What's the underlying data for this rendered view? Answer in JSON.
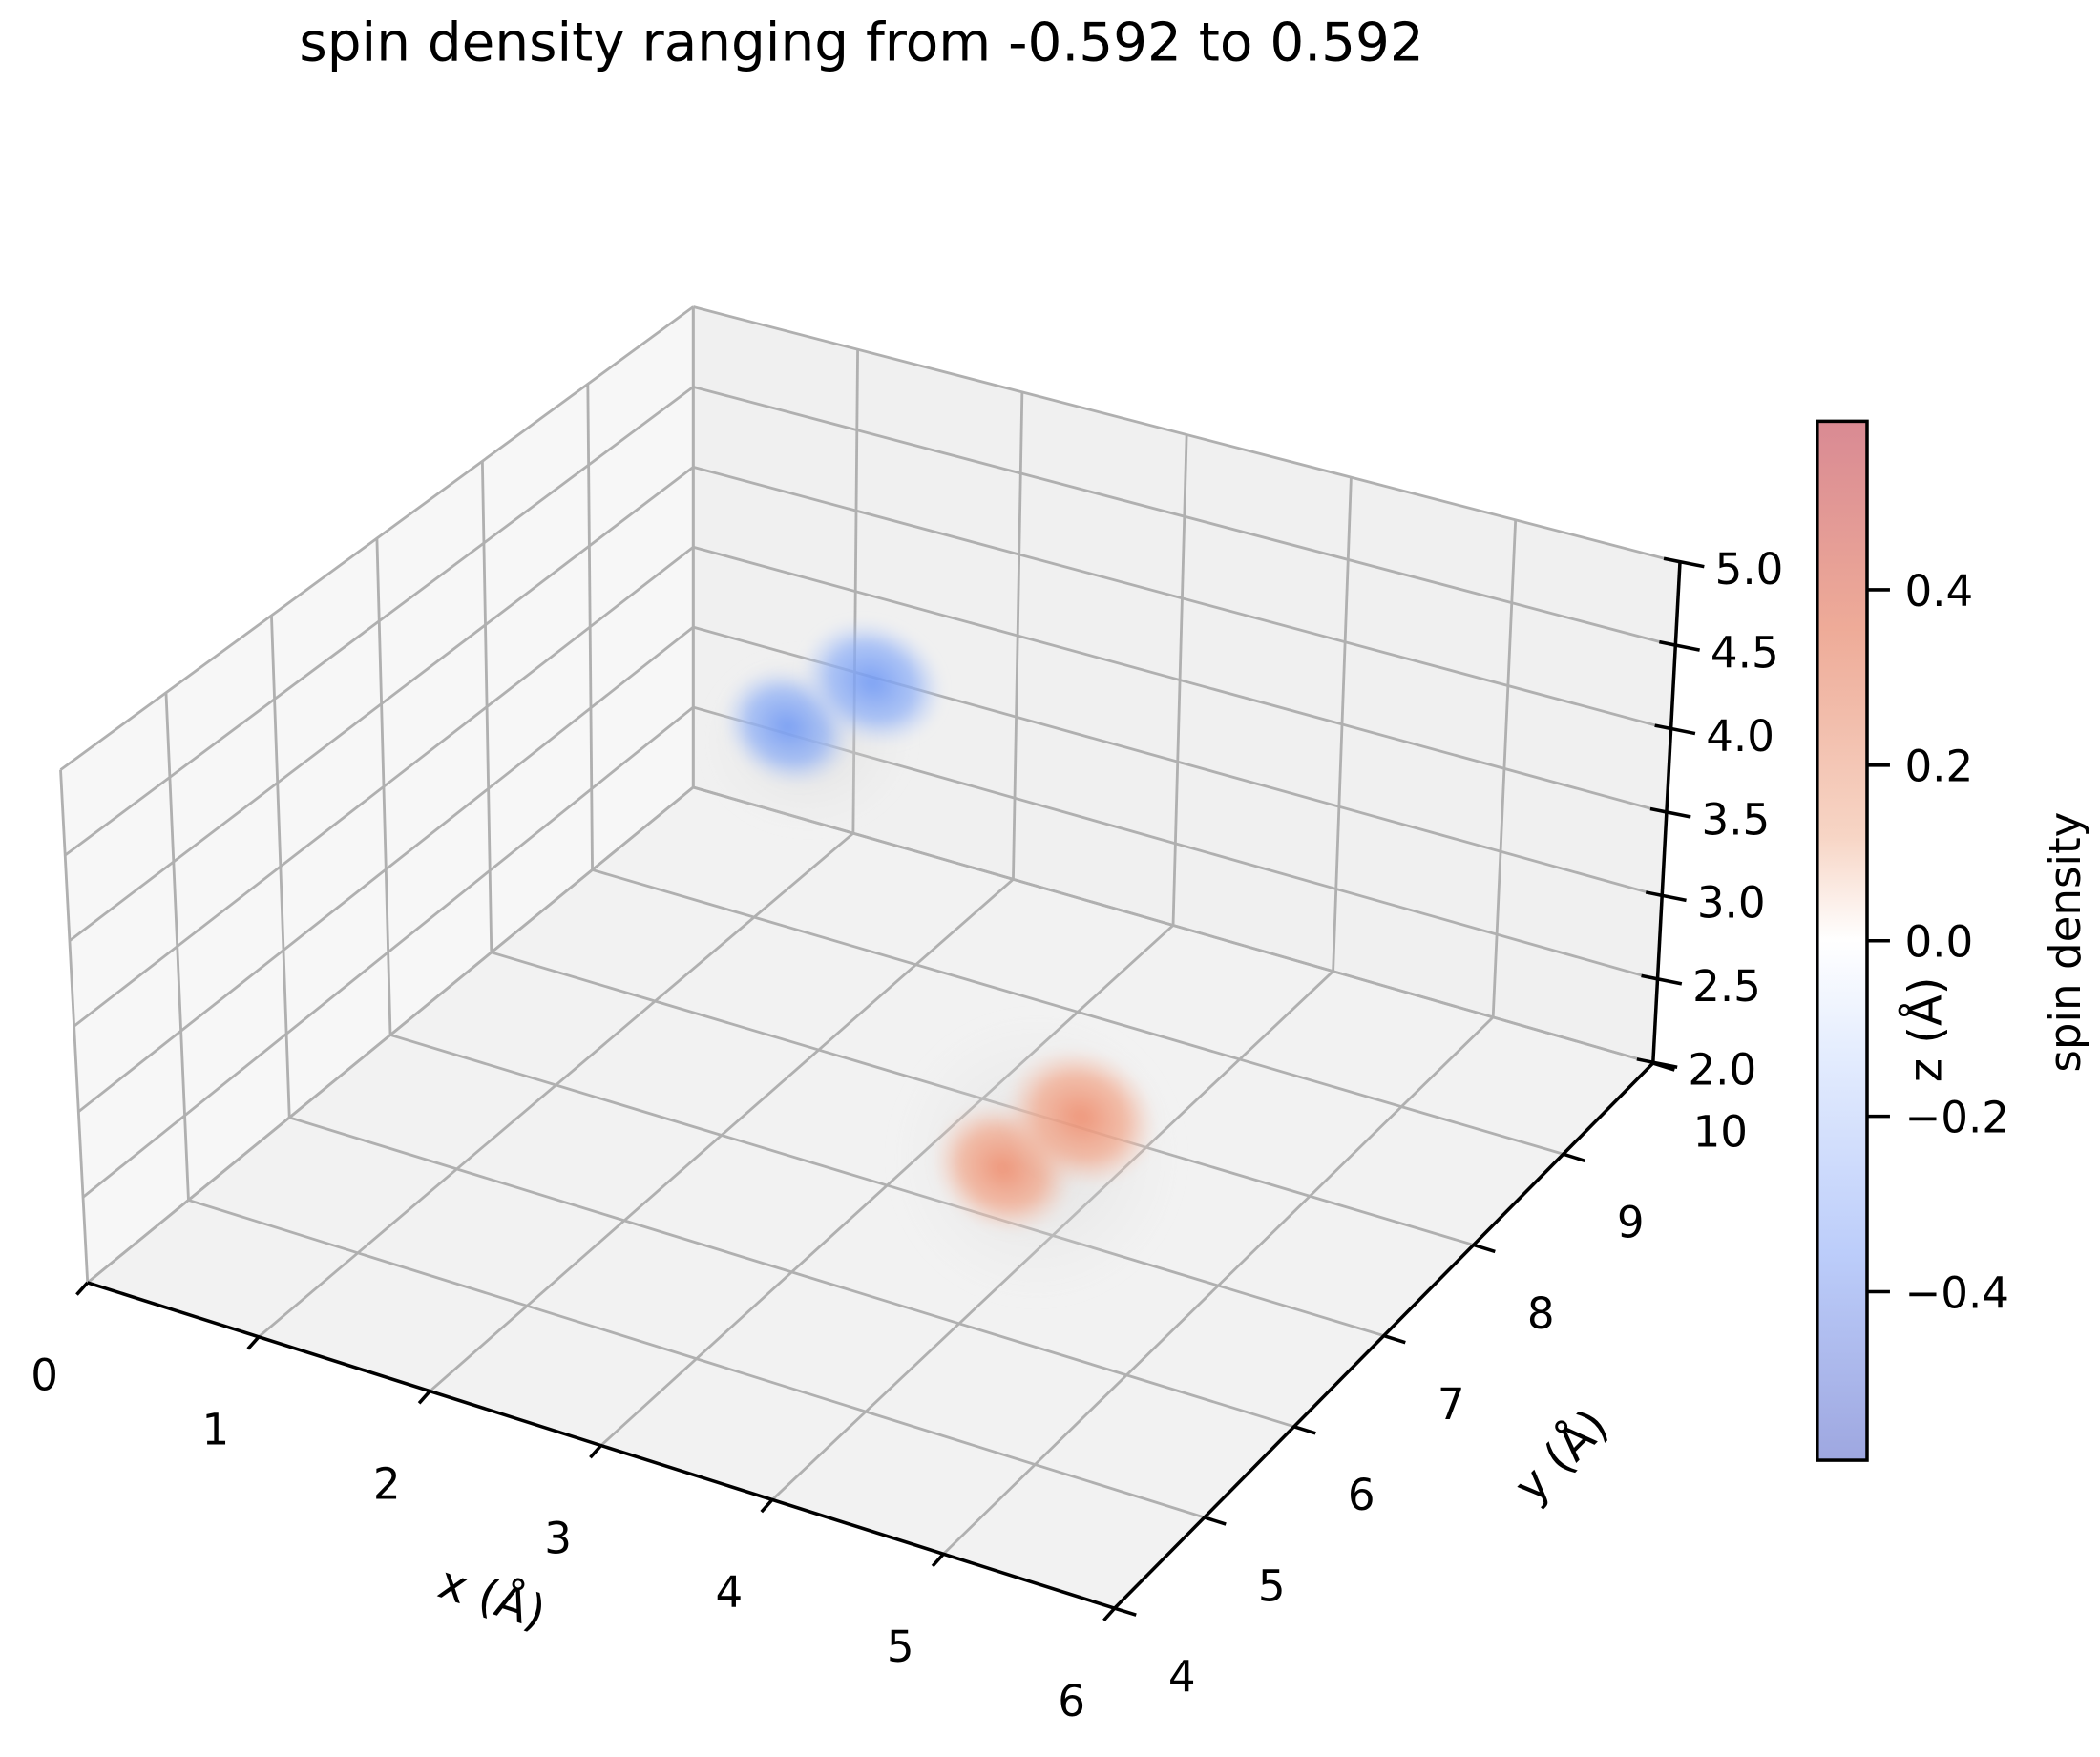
{
  "chart_data": {
    "type": "3d-volume-scatter",
    "title": "spin density ranging from -0.592 to 0.592",
    "xlabel": "x (Å)",
    "ylabel": "y (Å)",
    "zlabel": "z (Å)",
    "xlim": [
      0,
      6
    ],
    "ylim": [
      4,
      10
    ],
    "zlim": [
      2.0,
      5.0
    ],
    "x_ticks": [
      "0",
      "1",
      "2",
      "3",
      "4",
      "5",
      "6"
    ],
    "y_ticks": [
      "4",
      "5",
      "6",
      "7",
      "8",
      "9",
      "10"
    ],
    "z_ticks": [
      "2.0",
      "2.5",
      "3.0",
      "3.5",
      "4.0",
      "4.5",
      "5.0"
    ],
    "grid": true,
    "colormap": "coolwarm",
    "colorbar": {
      "label": "spin density",
      "range": [
        -0.592,
        0.592
      ],
      "ticks": [
        0.4,
        0.2,
        0.0,
        -0.2,
        -0.4
      ],
      "tick_labels": [
        "0.4",
        "0.2",
        "0.0",
        "−0.2",
        "−0.4"
      ],
      "placement": "right"
    },
    "features": [
      {
        "sign": "negative",
        "color": "#7aa2f7",
        "shape": "p-orbital two-lobe"
      },
      {
        "sign": "positive",
        "color": "#f0997a",
        "shape": "p-orbital two-lobe"
      }
    ]
  }
}
